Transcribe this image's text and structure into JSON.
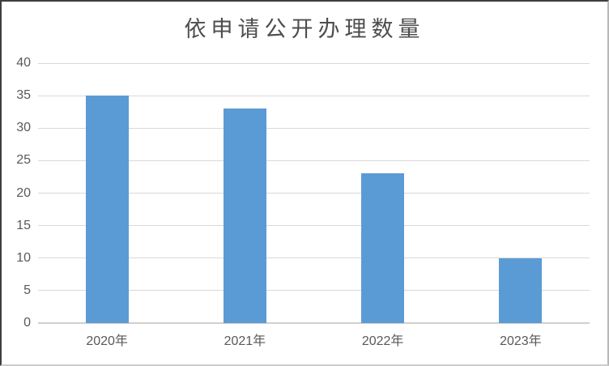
{
  "chart_data": {
    "type": "bar",
    "title": "依申请公开办理数量",
    "categories": [
      "2020年",
      "2021年",
      "2022年",
      "2023年"
    ],
    "values": [
      35,
      33,
      23,
      10
    ],
    "xlabel": "",
    "ylabel": "",
    "ylim": [
      0,
      40
    ],
    "yticks": [
      0,
      5,
      10,
      15,
      20,
      25,
      30,
      35,
      40
    ],
    "grid": "horizontal",
    "legend": "none"
  },
  "colors": {
    "bar": "#5b9bd5",
    "gridline": "#d9d9d9",
    "axis_line": "#d0d0d0",
    "title_text": "#4d4d4d",
    "tick_text": "#595959",
    "background": "#ffffff"
  }
}
